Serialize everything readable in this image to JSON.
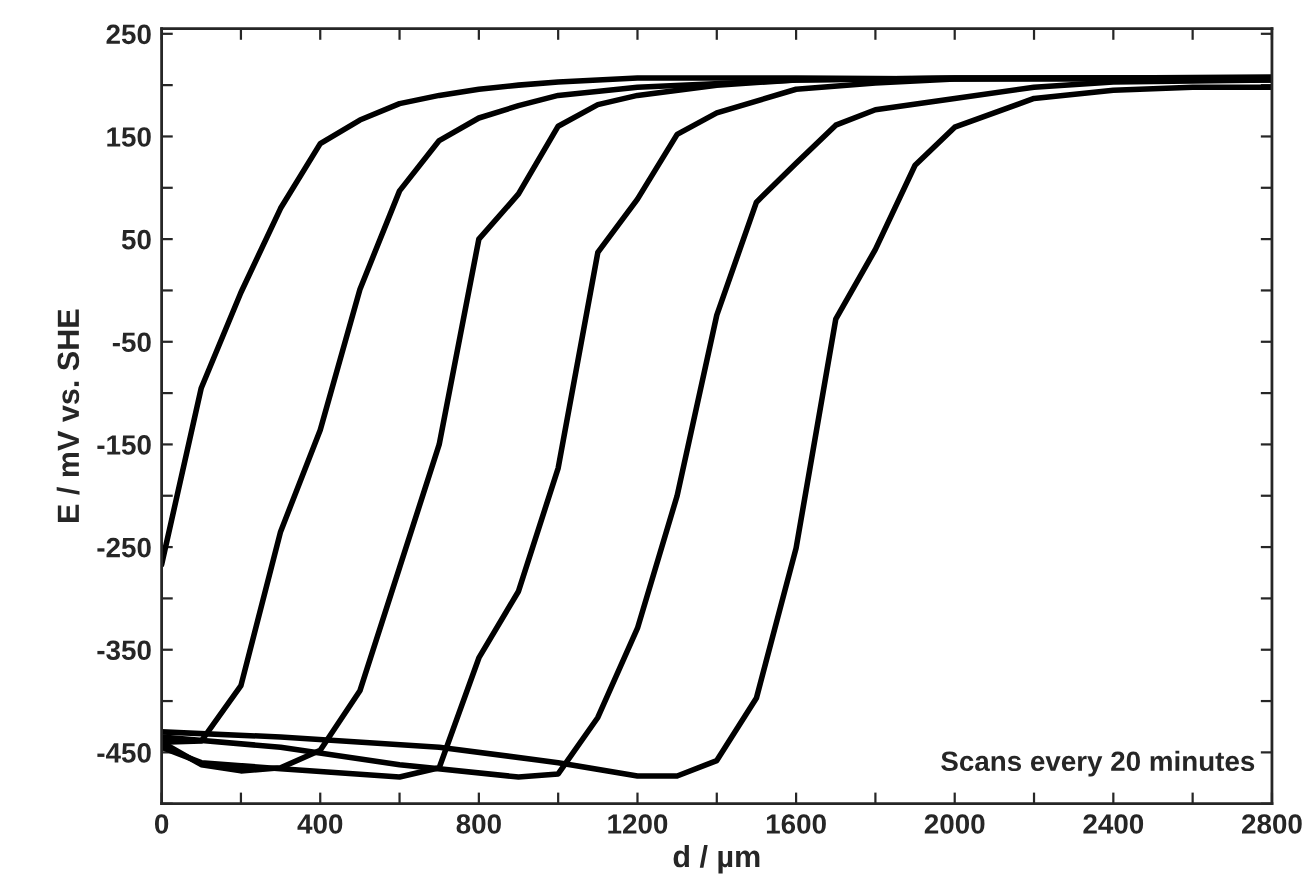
{
  "chart_data": {
    "type": "line",
    "xlabel": "d / µm",
    "ylabel": "E / mV vs. SHE",
    "annotations": [
      "Scans every 20 minutes"
    ],
    "xlim": [
      0,
      2800
    ],
    "ylim": [
      -500,
      255
    ],
    "xticks": [
      0,
      {
        "value": 200,
        "label": null
      },
      400,
      {
        "value": 600,
        "label": null
      },
      800,
      {
        "value": 1000,
        "label": null
      },
      1200,
      {
        "value": 1400,
        "label": null
      },
      1600,
      {
        "value": 1800,
        "label": null
      },
      2000,
      {
        "value": 2200,
        "label": null
      },
      2400,
      {
        "value": 2600,
        "label": null
      },
      2800
    ],
    "yticks": [
      {
        "value": -500,
        "label": null
      },
      -450,
      {
        "value": -400,
        "label": null
      },
      -350,
      {
        "value": -300,
        "label": null
      },
      -250,
      {
        "value": -200,
        "label": null
      },
      -150,
      {
        "value": -100,
        "label": null
      },
      -50,
      {
        "value": 0,
        "label": null
      },
      50,
      {
        "value": 100,
        "label": null
      },
      150,
      {
        "value": 200,
        "label": null
      },
      250
    ],
    "grid": false,
    "legend": false,
    "marker": "none",
    "line_style": "solid",
    "series": [
      {
        "color": "#000000",
        "x": [
          0,
          100,
          200,
          300,
          400,
          500,
          600,
          700,
          800,
          900,
          1000,
          1200,
          1600,
          2000,
          2400,
          2800
        ],
        "values": [
          -267,
          -95,
          -2,
          80,
          143,
          166,
          182,
          190,
          196,
          200,
          203,
          207,
          207,
          206,
          206,
          205
        ]
      },
      {
        "color": "#000000",
        "x": [
          0,
          100,
          200,
          300,
          400,
          500,
          600,
          700,
          800,
          900,
          1000,
          1200,
          1600,
          2000,
          2400,
          2800
        ],
        "values": [
          -440,
          -439,
          -385,
          -235,
          -136,
          1,
          97,
          146,
          168,
          180,
          190,
          198,
          205,
          207,
          207,
          208
        ]
      },
      {
        "color": "#000000",
        "x": [
          0,
          100,
          200,
          300,
          400,
          500,
          600,
          700,
          800,
          900,
          1000,
          1100,
          1200,
          1400,
          1600,
          2000,
          2400,
          2800
        ],
        "values": [
          -440,
          -462,
          -468,
          -465,
          -448,
          -390,
          -270,
          -150,
          50,
          94,
          160,
          181,
          190,
          200,
          205,
          207,
          207,
          206
        ]
      },
      {
        "color": "#000000",
        "x": [
          0,
          100,
          300,
          600,
          700,
          800,
          900,
          1000,
          1100,
          1200,
          1300,
          1400,
          1600,
          1800,
          2000,
          2400,
          2800
        ],
        "values": [
          -445,
          -460,
          -466,
          -474,
          -465,
          -358,
          -293,
          -173,
          37,
          89,
          152,
          173,
          196,
          202,
          206,
          207,
          207
        ]
      },
      {
        "color": "#000000",
        "x": [
          0,
          300,
          600,
          900,
          1000,
          1100,
          1200,
          1300,
          1400,
          1500,
          1600,
          1700,
          1800,
          2000,
          2200,
          2400,
          2800
        ],
        "values": [
          -435,
          -445,
          -462,
          -474,
          -471,
          -416,
          -329,
          -200,
          -24,
          86,
          124,
          161,
          176,
          187,
          198,
          203,
          205
        ]
      },
      {
        "color": "#000000",
        "x": [
          0,
          300,
          700,
          1000,
          1200,
          1300,
          1400,
          1500,
          1600,
          1700,
          1800,
          1900,
          2000,
          2200,
          2400,
          2600,
          2800
        ],
        "values": [
          -430,
          -435,
          -445,
          -460,
          -473,
          -473,
          -458,
          -397,
          -251,
          -28,
          40,
          122,
          159,
          187,
          195,
          198,
          198
        ]
      }
    ]
  }
}
